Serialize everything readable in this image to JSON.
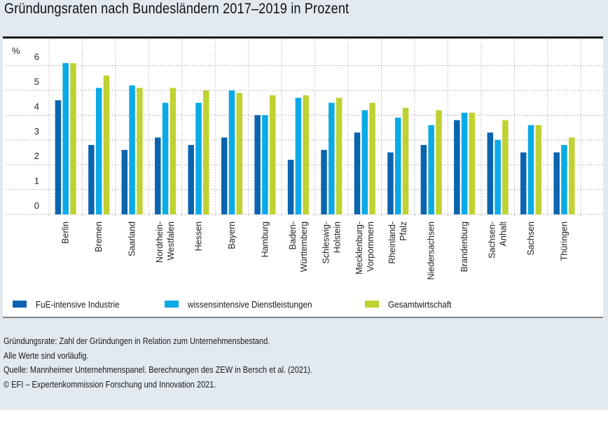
{
  "title": "Gründungsraten nach Bundesländern 2017–2019 in Prozent",
  "colors": {
    "fue": "#0a64b0",
    "wissen": "#0aaae6",
    "gesamt": "#bfd231",
    "background": "#e2e9ef"
  },
  "chart_data": {
    "type": "bar",
    "title": "Gründungsraten nach Bundesländern 2017–2019 in Prozent",
    "xlabel": "",
    "ylabel": "%",
    "ylim": [
      0,
      6
    ],
    "yticks": [
      "0",
      "1",
      "2",
      "3",
      "4",
      "5",
      "6"
    ],
    "grid": true,
    "legend_position": "bottom",
    "categories": [
      [
        "Berlin"
      ],
      [
        "Bremen"
      ],
      [
        "Saarland"
      ],
      [
        "Nordrhein-",
        "Westfalen"
      ],
      [
        "Hessen"
      ],
      [
        "Bayern"
      ],
      [
        "Hamburg"
      ],
      [
        "Baden-",
        "Württemberg"
      ],
      [
        "Schleswig-",
        "Holstein"
      ],
      [
        "Mecklenburg-",
        "Vorpommern"
      ],
      [
        "Rheinland-",
        "Pfalz"
      ],
      [
        "Niedersachsen"
      ],
      [
        "Brandenburg"
      ],
      [
        "Sachsen-",
        "Anhalt"
      ],
      [
        "Sachsen"
      ],
      [
        "Thüringen"
      ]
    ],
    "series": [
      {
        "name": "FuE-intensive Industrie",
        "color": "#0a64b0",
        "values": [
          4.6,
          2.8,
          2.6,
          3.1,
          2.8,
          3.1,
          4.0,
          2.2,
          2.6,
          3.3,
          2.5,
          2.8,
          3.8,
          3.3,
          2.5,
          2.5
        ]
      },
      {
        "name": "wissensintensive Dienstleistungen",
        "color": "#0aaae6",
        "values": [
          6.1,
          5.1,
          5.2,
          4.5,
          4.5,
          5.0,
          4.0,
          4.7,
          4.5,
          4.2,
          3.9,
          3.6,
          4.1,
          3.0,
          3.6,
          2.8
        ]
      },
      {
        "name": "Gesamtwirtschaft",
        "color": "#bfd231",
        "values": [
          6.1,
          5.6,
          5.1,
          5.1,
          5.0,
          4.9,
          4.8,
          4.8,
          4.7,
          4.5,
          4.3,
          4.2,
          4.1,
          3.8,
          3.6,
          3.1
        ]
      }
    ]
  },
  "legend": [
    {
      "label": "FuE-intensive Industrie"
    },
    {
      "label": "wissensintensive Dienstleistungen"
    },
    {
      "label": "Gesamtwirtschaft"
    }
  ],
  "notes": [
    "Gründungsrate: Zahl der Gründungen in Relation zum Unternehmensbestand.",
    "Alle Werte sind vorläufig.",
    "Quelle: Mannheimer Unternehmenspanel. Berechnungen des ZEW in Bersch et al. (2021).",
    "© EFI – Expertenkommission Forschung und Innovation 2021."
  ]
}
